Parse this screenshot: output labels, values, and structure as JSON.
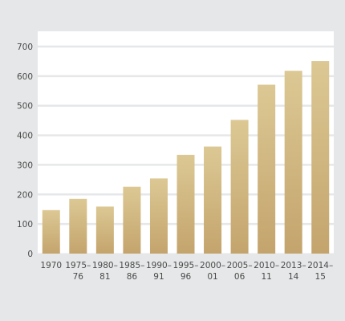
{
  "chart_data": {
    "type": "bar",
    "title": "",
    "xlabel": "",
    "ylabel": "",
    "ylim": [
      0,
      700
    ],
    "yticks": [
      0,
      100,
      200,
      300,
      400,
      500,
      600,
      700
    ],
    "grid": true,
    "categories": [
      [
        "1970"
      ],
      [
        "1975–",
        "76"
      ],
      [
        "1980–",
        "81"
      ],
      [
        "1985–",
        "86"
      ],
      [
        "1990–",
        "91"
      ],
      [
        "1995–",
        "96"
      ],
      [
        "2000–",
        "01"
      ],
      [
        "2005–",
        "06"
      ],
      [
        "2010–",
        "11"
      ],
      [
        "2013–",
        "14"
      ],
      [
        "2014–",
        "15"
      ]
    ],
    "values": [
      147,
      185,
      159,
      226,
      254,
      334,
      362,
      452,
      571,
      618,
      651
    ],
    "colors": {
      "background": "#e6e7e8",
      "plot_background": "#ffffff",
      "gridline": "#e6e7e8",
      "bar_top": "#dcc894",
      "bar_bottom": "#c4a46d",
      "text": "#4a4a4a"
    }
  }
}
